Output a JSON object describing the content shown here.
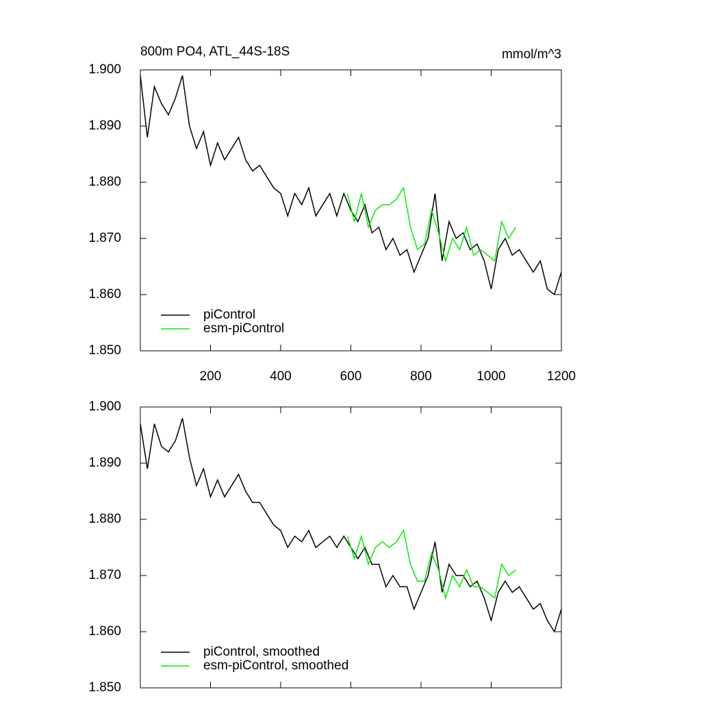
{
  "chart_data": [
    {
      "type": "line",
      "title": "800m PO4, ATL_44S-18S",
      "units": "mmol/m^3",
      "xlim": [
        0,
        1200
      ],
      "xticks": [
        200,
        400,
        600,
        800,
        1000,
        1200
      ],
      "ylim": [
        1.85,
        1.9
      ],
      "yticks": [
        {
          "value": 1.85,
          "label": "1.850"
        },
        {
          "value": 1.86,
          "label": "1.860"
        },
        {
          "value": 1.87,
          "label": "1.870"
        },
        {
          "value": 1.88,
          "label": "1.880"
        },
        {
          "value": 1.89,
          "label": "1.890"
        },
        {
          "value": 1.9,
          "label": "1.900"
        }
      ],
      "legend": "lower left",
      "series": [
        {
          "name": "piControl",
          "color": "#000000",
          "x": [
            0,
            20,
            40,
            60,
            80,
            100,
            120,
            140,
            160,
            180,
            200,
            220,
            240,
            260,
            280,
            300,
            320,
            340,
            360,
            380,
            400,
            420,
            440,
            460,
            480,
            500,
            520,
            540,
            560,
            580,
            600,
            620,
            640,
            660,
            680,
            700,
            720,
            740,
            760,
            780,
            800,
            820,
            840,
            860,
            880,
            900,
            920,
            940,
            960,
            980,
            1000,
            1020,
            1040,
            1060,
            1080,
            1100,
            1120,
            1140,
            1160,
            1180,
            1200
          ],
          "values": [
            1.899,
            1.888,
            1.897,
            1.894,
            1.892,
            1.895,
            1.899,
            1.89,
            1.886,
            1.889,
            1.883,
            1.887,
            1.884,
            1.886,
            1.888,
            1.884,
            1.882,
            1.883,
            1.881,
            1.879,
            1.878,
            1.874,
            1.878,
            1.876,
            1.879,
            1.874,
            1.876,
            1.878,
            1.874,
            1.878,
            1.875,
            1.873,
            1.876,
            1.871,
            1.872,
            1.868,
            1.87,
            1.867,
            1.868,
            1.864,
            1.867,
            1.87,
            1.878,
            1.866,
            1.873,
            1.87,
            1.871,
            1.868,
            1.869,
            1.866,
            1.861,
            1.868,
            1.87,
            1.867,
            1.868,
            1.866,
            1.864,
            1.866,
            1.861,
            1.86,
            1.864
          ]
        },
        {
          "name": "esm-piControl",
          "color": "#00ee00",
          "x": [
            590,
            610,
            630,
            650,
            670,
            690,
            710,
            730,
            750,
            770,
            790,
            810,
            830,
            850,
            870,
            890,
            910,
            930,
            950,
            970,
            990,
            1010,
            1030,
            1050,
            1070
          ],
          "values": [
            1.878,
            1.873,
            1.878,
            1.872,
            1.875,
            1.876,
            1.876,
            1.877,
            1.879,
            1.872,
            1.868,
            1.869,
            1.875,
            1.871,
            1.866,
            1.87,
            1.868,
            1.872,
            1.867,
            1.868,
            1.867,
            1.866,
            1.873,
            1.87,
            1.872
          ]
        }
      ]
    },
    {
      "type": "line",
      "xlim": [
        0,
        1200
      ],
      "xticks": [
        200,
        400,
        600,
        800,
        1000,
        1200
      ],
      "ylim": [
        1.85,
        1.9
      ],
      "yticks": [
        {
          "value": 1.85,
          "label": "1.850"
        },
        {
          "value": 1.86,
          "label": "1.860"
        },
        {
          "value": 1.87,
          "label": "1.870"
        },
        {
          "value": 1.88,
          "label": "1.880"
        },
        {
          "value": 1.89,
          "label": "1.890"
        },
        {
          "value": 1.9,
          "label": "1.900"
        }
      ],
      "legend": "lower left",
      "series": [
        {
          "name": "piControl, smoothed",
          "color": "#000000",
          "x": [
            0,
            20,
            40,
            60,
            80,
            100,
            120,
            140,
            160,
            180,
            200,
            220,
            240,
            260,
            280,
            300,
            320,
            340,
            360,
            380,
            400,
            420,
            440,
            460,
            480,
            500,
            520,
            540,
            560,
            580,
            600,
            620,
            640,
            660,
            680,
            700,
            720,
            740,
            760,
            780,
            800,
            820,
            840,
            860,
            880,
            900,
            920,
            940,
            960,
            980,
            1000,
            1020,
            1040,
            1060,
            1080,
            1100,
            1120,
            1140,
            1160,
            1180,
            1200
          ],
          "values": [
            1.897,
            1.889,
            1.897,
            1.893,
            1.892,
            1.894,
            1.898,
            1.891,
            1.886,
            1.889,
            1.884,
            1.887,
            1.884,
            1.886,
            1.888,
            1.885,
            1.883,
            1.883,
            1.881,
            1.879,
            1.878,
            1.875,
            1.877,
            1.876,
            1.878,
            1.875,
            1.876,
            1.877,
            1.875,
            1.877,
            1.875,
            1.873,
            1.875,
            1.872,
            1.872,
            1.868,
            1.87,
            1.868,
            1.868,
            1.864,
            1.867,
            1.87,
            1.876,
            1.867,
            1.872,
            1.87,
            1.87,
            1.868,
            1.869,
            1.866,
            1.862,
            1.867,
            1.869,
            1.867,
            1.868,
            1.866,
            1.864,
            1.865,
            1.862,
            1.86,
            1.864
          ]
        },
        {
          "name": "esm-piControl, smoothed",
          "color": "#00ee00",
          "x": [
            590,
            610,
            630,
            650,
            670,
            690,
            710,
            730,
            750,
            770,
            790,
            810,
            830,
            850,
            870,
            890,
            910,
            930,
            950,
            970,
            990,
            1010,
            1030,
            1050,
            1070
          ],
          "values": [
            1.877,
            1.873,
            1.877,
            1.872,
            1.875,
            1.876,
            1.875,
            1.876,
            1.878,
            1.872,
            1.869,
            1.869,
            1.874,
            1.871,
            1.866,
            1.87,
            1.868,
            1.871,
            1.868,
            1.868,
            1.867,
            1.866,
            1.872,
            1.87,
            1.871
          ]
        }
      ]
    }
  ]
}
